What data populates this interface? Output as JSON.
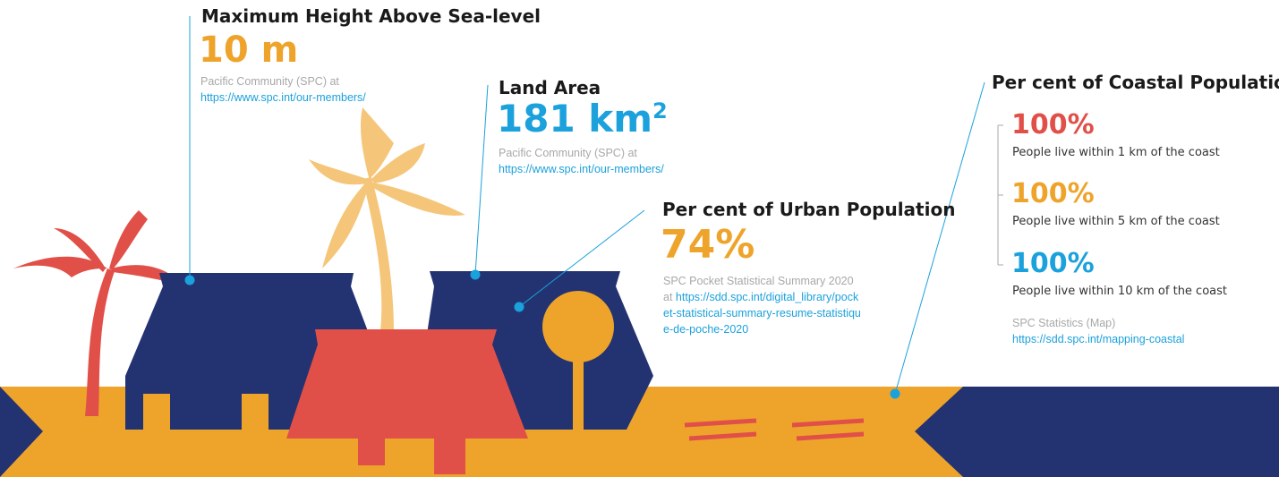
{
  "max_height": {
    "title": "Maximum Height Above Sea-level",
    "value": "10 m",
    "source": "Pacific Community (SPC) at",
    "link": "https://www.spc.int/our-members/"
  },
  "land_area": {
    "title": "Land Area",
    "value": "181 km",
    "superscript": "2",
    "source": "Pacific Community (SPC) at",
    "link": "https://www.spc.int/our-members/"
  },
  "urban_population": {
    "title": "Per cent of Urban Population",
    "value": "74%",
    "source": "SPC Pocket Statistical Summary 2020 at",
    "link": "https://sdd.spc.int/digital_library/pocket-statistical-summary-resume-statistique-de-poche-2020"
  },
  "coastal_population": {
    "title": "Per cent of Coastal Population",
    "items": [
      {
        "value": "100%",
        "label": "People live within 1 km of the coast"
      },
      {
        "value": "100%",
        "label": "People live within 5 km of the coast"
      },
      {
        "value": "100%",
        "label": "People live within 10 km of the coast"
      }
    ],
    "source": "SPC Statistics (Map)",
    "link": "https://sdd.spc.int/mapping-coastal"
  }
}
